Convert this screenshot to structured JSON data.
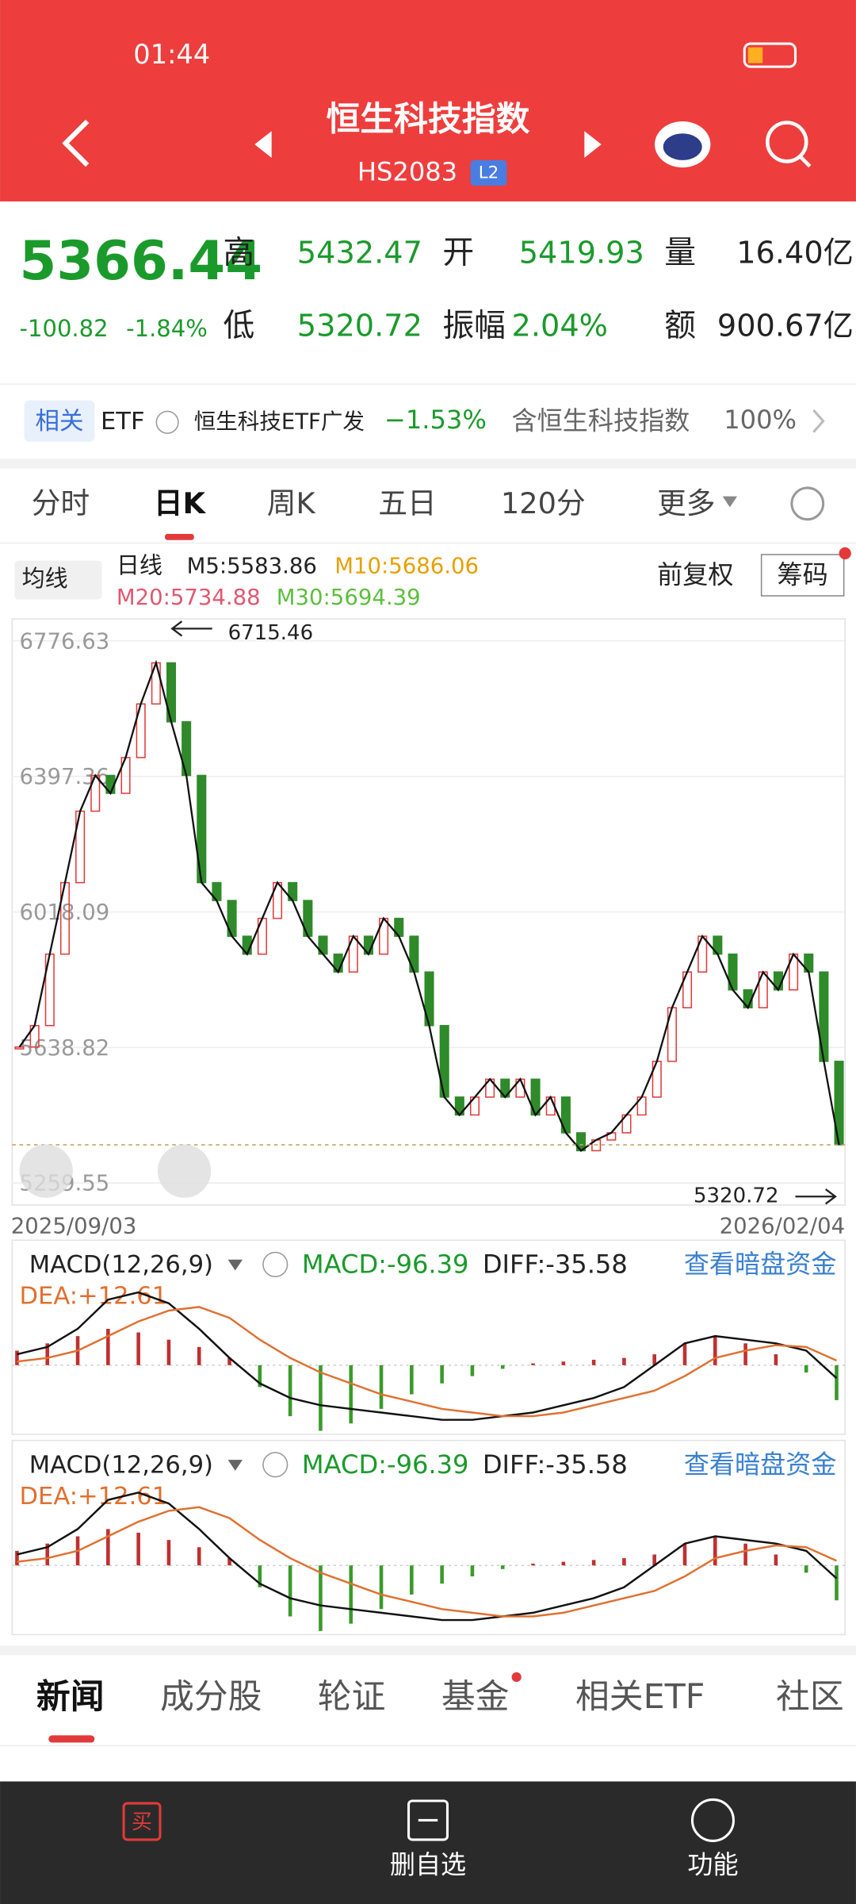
{
  "status": {
    "time": "01:44"
  },
  "header": {
    "title": "恒生科技指数",
    "code": "HS2083",
    "badge": "L2"
  },
  "quote": {
    "price": "5366.44",
    "change": "-100.82",
    "change_pct": "-1.84%",
    "fields": [
      {
        "label": "高",
        "value": "5432.47"
      },
      {
        "label": "开",
        "value": "5419.93"
      },
      {
        "label": "量",
        "value": "16.40亿"
      },
      {
        "label": "低",
        "value": "5320.72"
      },
      {
        "label": "振幅",
        "value": "2.04%"
      },
      {
        "label": "额",
        "value": "900.67亿"
      }
    ]
  },
  "etf": {
    "tag": "相关",
    "type": "ETF",
    "name": "恒生科技ETF广发",
    "change": "−1.53%",
    "holding": "含恒生科技指数",
    "holding_pct": "100%"
  },
  "tabs": [
    "分时",
    "日K",
    "周K",
    "五日",
    "120分",
    "更多"
  ],
  "ma": {
    "selector": "均线",
    "period": "日线",
    "m5": "M5:5583.86",
    "m10": "M10:5686.06",
    "m20": "M20:5734.88",
    "m30": "M30:5694.39",
    "adjust": "前复权",
    "chips": "筹码"
  },
  "kline": {
    "type": "candlestick",
    "ylim": [
      5198,
      6838
    ],
    "yticks": [
      6776.63,
      6397.36,
      6018.09,
      5638.82,
      5259.55
    ],
    "annotations": [
      "6715.46",
      "5320.72"
    ],
    "x_labels": [
      "2025/09/03",
      "2026/02/04"
    ],
    "closes": [
      5640,
      5700,
      5900,
      6100,
      6300,
      6400,
      6350,
      6450,
      6600,
      6715,
      6550,
      6400,
      6100,
      6050,
      5950,
      5900,
      6000,
      6100,
      6050,
      5950,
      5900,
      5850,
      5950,
      5900,
      6000,
      5950,
      5850,
      5700,
      5500,
      5450,
      5500,
      5550,
      5500,
      5550,
      5450,
      5500,
      5400,
      5350,
      5380,
      5400,
      5450,
      5500,
      5600,
      5750,
      5850,
      5950,
      5900,
      5800,
      5750,
      5850,
      5800,
      5900,
      5850,
      5600,
      5366.44
    ]
  },
  "macd": {
    "title": "MACD(12,26,9)",
    "macd": "MACD:-96.39",
    "diff": "DIFF:-35.58",
    "dea": "DEA:+12.61",
    "link": "查看暗盘资金",
    "ylim": [
      -200,
      200
    ],
    "hist": [
      40,
      60,
      80,
      100,
      90,
      70,
      50,
      20,
      -60,
      -140,
      -180,
      -160,
      -120,
      -80,
      -50,
      -30,
      -10,
      5,
      10,
      15,
      20,
      30,
      60,
      80,
      60,
      30,
      -20,
      -96
    ],
    "diff_values": [
      30,
      50,
      100,
      180,
      200,
      170,
      100,
      20,
      -50,
      -90,
      -110,
      -120,
      -130,
      -140,
      -150,
      -150,
      -140,
      -130,
      -110,
      -90,
      -60,
      0,
      60,
      80,
      70,
      60,
      40,
      -35.58
    ],
    "dea_values": [
      10,
      20,
      40,
      80,
      120,
      150,
      160,
      130,
      70,
      20,
      -20,
      -50,
      -80,
      -100,
      -120,
      -130,
      -140,
      -140,
      -130,
      -110,
      -90,
      -70,
      -30,
      20,
      40,
      55,
      50,
      12.61
    ]
  },
  "bottom_tabs": [
    "新闻",
    "成分股",
    "轮证",
    "基金",
    "相关ETF",
    "社区"
  ],
  "actions": [
    "买",
    "删自选",
    "功能"
  ]
}
